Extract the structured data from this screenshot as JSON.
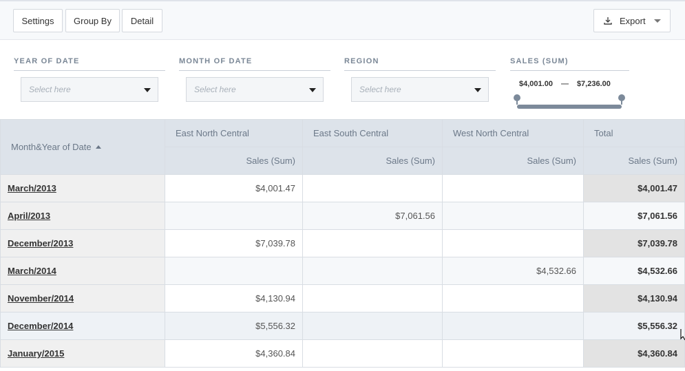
{
  "toolbar": {
    "settings_label": "Settings",
    "group_by_label": "Group By",
    "detail_label": "Detail",
    "export_label": "Export"
  },
  "filters": {
    "year": {
      "label": "YEAR OF DATE",
      "placeholder": "Select here"
    },
    "month": {
      "label": "MONTH OF DATE",
      "placeholder": "Select here"
    },
    "region": {
      "label": "REGION",
      "placeholder": "Select here"
    },
    "sales": {
      "label": "SALES (SUM)",
      "min": "$4,001.00",
      "dash": "—",
      "max": "$7,236.00"
    }
  },
  "pivot": {
    "row_header": "Month&Year of Date",
    "columns": [
      "East North Central",
      "East South Central",
      "West North Central",
      "Total"
    ],
    "measure": "Sales (Sum)",
    "rows": [
      {
        "label": "March/2013",
        "values": [
          "$4,001.47",
          "",
          "",
          "$4,001.47"
        ]
      },
      {
        "label": "April/2013",
        "values": [
          "",
          "$7,061.56",
          "",
          "$7,061.56"
        ]
      },
      {
        "label": "December/2013",
        "values": [
          "$7,039.78",
          "",
          "",
          "$7,039.78"
        ]
      },
      {
        "label": "March/2014",
        "values": [
          "",
          "",
          "$4,532.66",
          "$4,532.66"
        ]
      },
      {
        "label": "November/2014",
        "values": [
          "$4,130.94",
          "",
          "",
          "$4,130.94"
        ]
      },
      {
        "label": "December/2014",
        "values": [
          "$5,556.32",
          "",
          "",
          "$5,556.32"
        ]
      },
      {
        "label": "January/2015",
        "values": [
          "$4,360.84",
          "",
          "",
          "$4,360.84"
        ]
      }
    ]
  },
  "icons": {
    "export": "download-icon",
    "dropdown": "chevron-down-icon",
    "sort": "sort-ascending-icon"
  }
}
